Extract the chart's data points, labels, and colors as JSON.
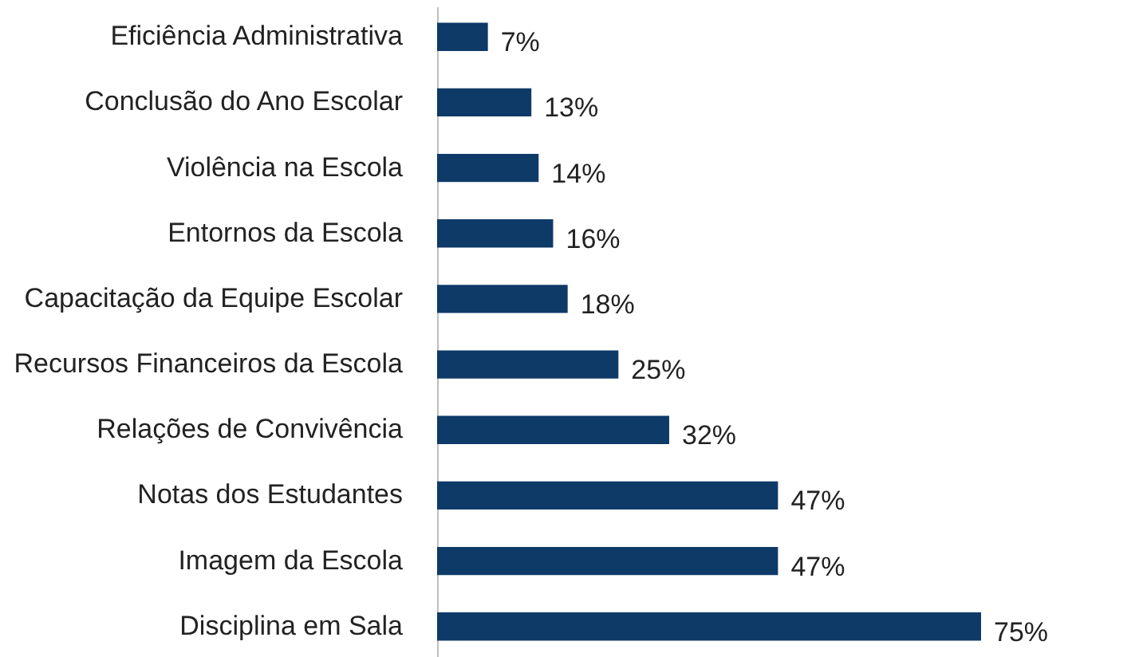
{
  "chart_data": {
    "type": "bar",
    "orientation": "horizontal",
    "categories": [
      "Eficiência Administrativa",
      "Conclusão do Ano Escolar",
      "Violência na Escola",
      "Entornos da Escola",
      "Capacitação da Equipe Escolar",
      "Recursos Financeiros da Escola",
      "Relações de Convivência",
      "Notas dos Estudantes",
      "Imagem da Escola",
      "Disciplina em Sala"
    ],
    "values": [
      7,
      13,
      14,
      16,
      18,
      25,
      32,
      47,
      47,
      75
    ],
    "value_labels": [
      "7%",
      "13%",
      "14%",
      "16%",
      "18%",
      "25%",
      "32%",
      "47%",
      "47%",
      "75%"
    ],
    "color": "#0e3a68",
    "tick_labels": "y"
  }
}
